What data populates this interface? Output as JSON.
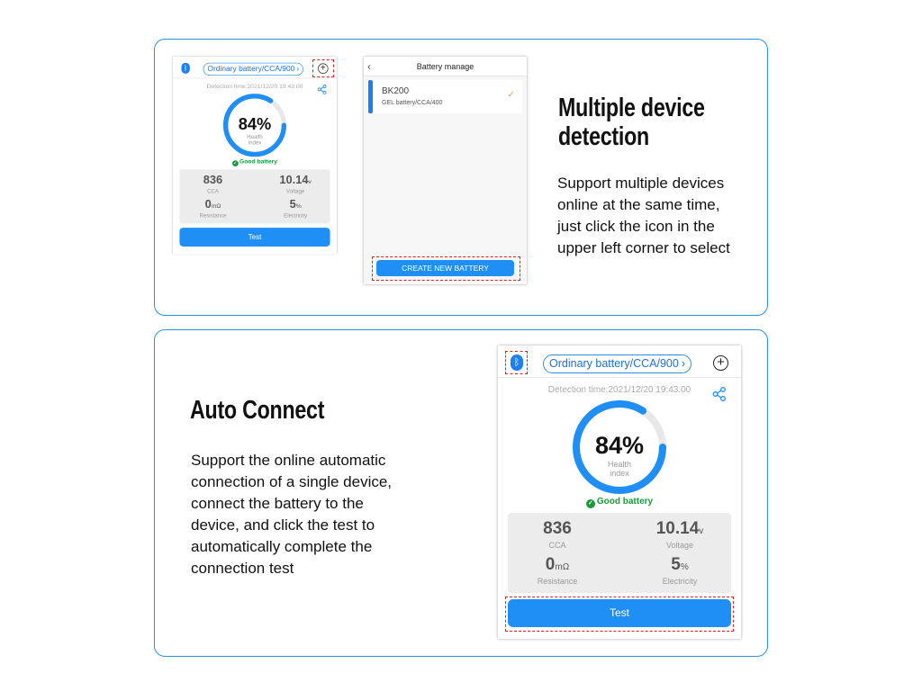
{
  "colors": {
    "accent": "#1f8ff5",
    "panel_border": "#2b8fe2",
    "good": "#1a9b3a",
    "highlight": "#e02020"
  },
  "section1": {
    "title_line1": "Multiple device",
    "title_line2": "detection",
    "body": "Support multiple devices\nonline at the same time,\n just click the icon in the\nupper left corner to select"
  },
  "section2": {
    "title": "Auto Connect",
    "body": "Support the online automatic\nconnection of a single device,\nconnect the battery to the\ndevice, and click the test to\nautomatically complete the\nconnection test"
  },
  "phone": {
    "battery_type": "Ordinary battery/CCA/900",
    "detection_time": "Detection time:2021/12/20 19:43:00",
    "health_percent": 84,
    "health_text": "84%",
    "health_label": "Health index",
    "status": "Good battery",
    "stats": [
      {
        "value": "836",
        "unit": "",
        "label": "CCA"
      },
      {
        "value": "10.14",
        "unit": "v",
        "label": "Voltage"
      },
      {
        "value": "0",
        "unit": "mΩ",
        "label": "Resistance"
      },
      {
        "value": "5",
        "unit": "%",
        "label": "Electricity"
      }
    ],
    "test_label": "Test"
  },
  "battery_manage": {
    "title": "Battery manage",
    "items": [
      {
        "name": "BK200",
        "spec": "GEL battery/CCA/400",
        "selected": true
      }
    ],
    "create_label": "CREATE NEW BATTERY"
  }
}
